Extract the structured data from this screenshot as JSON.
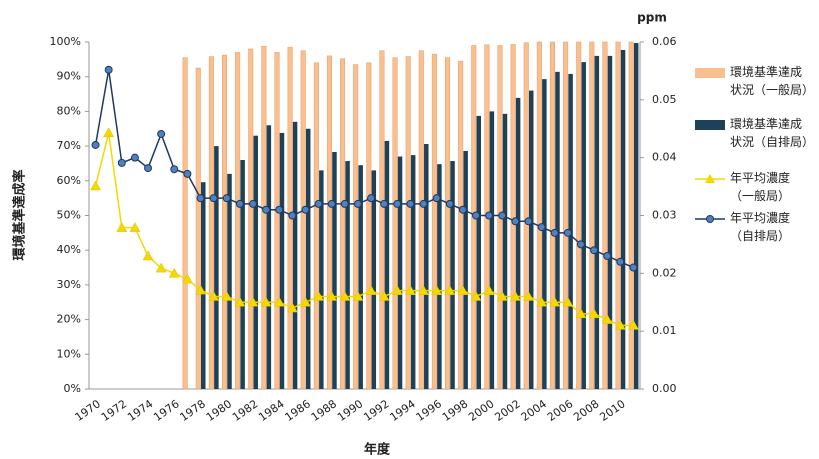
{
  "chart_data": {
    "type": "bar",
    "y_label": "環境基準達成率",
    "x_label": "年度",
    "y2_label": "ppm",
    "categories": [
      "1970",
      null,
      "1972",
      null,
      "1974",
      null,
      "1976",
      null,
      "1978",
      null,
      "1980",
      null,
      "1982",
      null,
      "1984",
      null,
      "1986",
      null,
      "1988",
      null,
      "1990",
      null,
      "1992",
      null,
      "1994",
      null,
      "1996",
      null,
      "1998",
      null,
      "2000",
      null,
      "2002",
      null,
      "2004",
      null,
      "2006",
      null,
      "2008",
      null,
      "2010",
      null
    ],
    "ylim": [
      0,
      100
    ],
    "yticks": [
      {
        "value": 0,
        "label": "0%"
      },
      {
        "value": 10,
        "label": "10%"
      },
      {
        "value": 20,
        "label": "20%"
      },
      {
        "value": 30,
        "label": "30%"
      },
      {
        "value": 40,
        "label": "40%"
      },
      {
        "value": 50,
        "label": "50%"
      },
      {
        "value": 60,
        "label": "60%"
      },
      {
        "value": 70,
        "label": "70%"
      },
      {
        "value": 80,
        "label": "80%"
      },
      {
        "value": 90,
        "label": "90%"
      },
      {
        "value": 100,
        "label": "100%"
      }
    ],
    "y2lim": [
      0,
      0.06
    ],
    "y2ticks": [
      {
        "value": 0,
        "label": "0.00"
      },
      {
        "value": 0.01,
        "label": "0.01"
      },
      {
        "value": 0.02,
        "label": "0.02"
      },
      {
        "value": 0.03,
        "label": "0.03"
      },
      {
        "value": 0.04,
        "label": "0.04"
      },
      {
        "value": 0.05,
        "label": "0.05"
      },
      {
        "value": 0.06,
        "label": "0.06"
      }
    ],
    "grid": false,
    "series": [
      {
        "name": "環境基準達成状況（一般局）",
        "type": "bar",
        "color": "#f9bf8f",
        "values": [
          null,
          null,
          null,
          null,
          null,
          null,
          null,
          95.5,
          92.5,
          95.8,
          96.2,
          97,
          98,
          98.8,
          97,
          98.5,
          97.5,
          94,
          96,
          95.2,
          93.5,
          94,
          97.5,
          95.5,
          95.8,
          97.5,
          96.5,
          95.5,
          94.5,
          99,
          99.2,
          99,
          99.3,
          99.8,
          100,
          100,
          100,
          100,
          100,
          100,
          100,
          100
        ]
      },
      {
        "name": "環境基準達成状況（自排局）",
        "type": "bar",
        "color": "#1d4257",
        "values": [
          null,
          null,
          null,
          null,
          null,
          null,
          null,
          null,
          59.6,
          70,
          62,
          66,
          73,
          76,
          73.8,
          77,
          75,
          63,
          68.3,
          65.7,
          64.5,
          63,
          71.5,
          67,
          67.4,
          70.6,
          64.8,
          65.7,
          68.6,
          78.7,
          80,
          79.3,
          83.9,
          86,
          89.3,
          91.4,
          90.8,
          94.2,
          96,
          96,
          97.7,
          99.7
        ]
      },
      {
        "name": "年平均濃度（一般局）",
        "type": "line",
        "axis": "y2",
        "color": "#f5d800",
        "marker": "triangle",
        "values": [
          0.0351,
          0.0443,
          0.0279,
          0.0279,
          0.023,
          0.0209,
          0.02,
          0.019,
          0.0171,
          0.016,
          0.016,
          0.015,
          0.015,
          0.015,
          0.015,
          0.014,
          0.015,
          0.016,
          0.016,
          0.016,
          0.016,
          0.017,
          0.016,
          0.017,
          0.017,
          0.017,
          0.017,
          0.017,
          0.017,
          0.016,
          0.017,
          0.016,
          0.016,
          0.016,
          0.015,
          0.015,
          0.015,
          0.013,
          0.013,
          0.012,
          0.011,
          0.011
        ]
      },
      {
        "name": "年平均濃度（自排局）",
        "type": "line",
        "axis": "y2",
        "color": "#1f3864",
        "marker": "circle",
        "values": [
          0.0422,
          0.0552,
          0.0391,
          0.04,
          0.0382,
          0.0441,
          0.038,
          0.0372,
          0.033,
          0.033,
          0.033,
          0.032,
          0.032,
          0.031,
          0.031,
          0.03,
          0.031,
          0.032,
          0.032,
          0.032,
          0.032,
          0.033,
          0.032,
          0.032,
          0.032,
          0.032,
          0.033,
          0.032,
          0.031,
          0.03,
          0.03,
          0.03,
          0.029,
          0.029,
          0.028,
          0.027,
          0.027,
          0.025,
          0.024,
          0.023,
          0.022,
          0.021
        ]
      }
    ]
  }
}
